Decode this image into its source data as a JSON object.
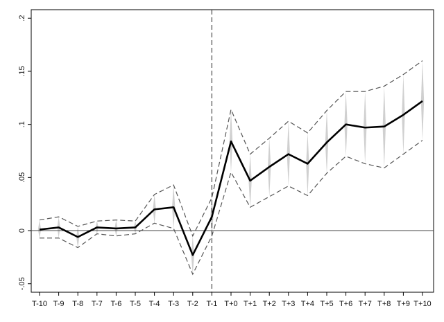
{
  "chart_data": {
    "type": "line",
    "title": "",
    "xlabel": "",
    "ylabel": "",
    "categories": [
      "T-10",
      "T-9",
      "T-8",
      "T-7",
      "T-6",
      "T-5",
      "T-4",
      "T-3",
      "T-2",
      "T-1",
      "T+0",
      "T+1",
      "T+2",
      "T+3",
      "T+4",
      "T+5",
      "T+6",
      "T+7",
      "T+8",
      "T+9",
      "T+10"
    ],
    "y_ticks": [
      -0.05,
      0,
      0.05,
      0.1,
      0.15,
      0.2
    ],
    "y_tick_labels": [
      "-.05",
      "0",
      ".05",
      ".1",
      ".15",
      ".2"
    ],
    "ylim": [
      -0.058,
      0.208
    ],
    "reference_line_y": 0,
    "event_line_category": "T-1",
    "grid": false,
    "series": [
      {
        "role": "estimate",
        "values": [
          0.001,
          0.003,
          -0.006,
          0.003,
          0.002,
          0.003,
          0.02,
          0.022,
          -0.023,
          0.013,
          0.084,
          0.047,
          0.06,
          0.072,
          0.063,
          0.083,
          0.1,
          0.097,
          0.098,
          0.109,
          0.122
        ]
      },
      {
        "role": "upper_ci",
        "values": [
          0.01,
          0.013,
          0.004,
          0.009,
          0.01,
          0.009,
          0.034,
          0.043,
          -0.005,
          0.031,
          0.114,
          0.072,
          0.087,
          0.103,
          0.092,
          0.113,
          0.131,
          0.131,
          0.136,
          0.147,
          0.16
        ]
      },
      {
        "role": "lower_ci",
        "values": [
          -0.007,
          -0.007,
          -0.016,
          -0.003,
          -0.005,
          -0.003,
          0.007,
          0.002,
          -0.041,
          -0.005,
          0.055,
          0.022,
          0.032,
          0.042,
          0.033,
          0.054,
          0.07,
          0.063,
          0.059,
          0.072,
          0.085
        ]
      }
    ],
    "colors": {
      "estimate": "#000000",
      "ci": "#555555",
      "bands": "#c8c8c8",
      "axis": "#000000",
      "event_line": "#333333"
    }
  }
}
